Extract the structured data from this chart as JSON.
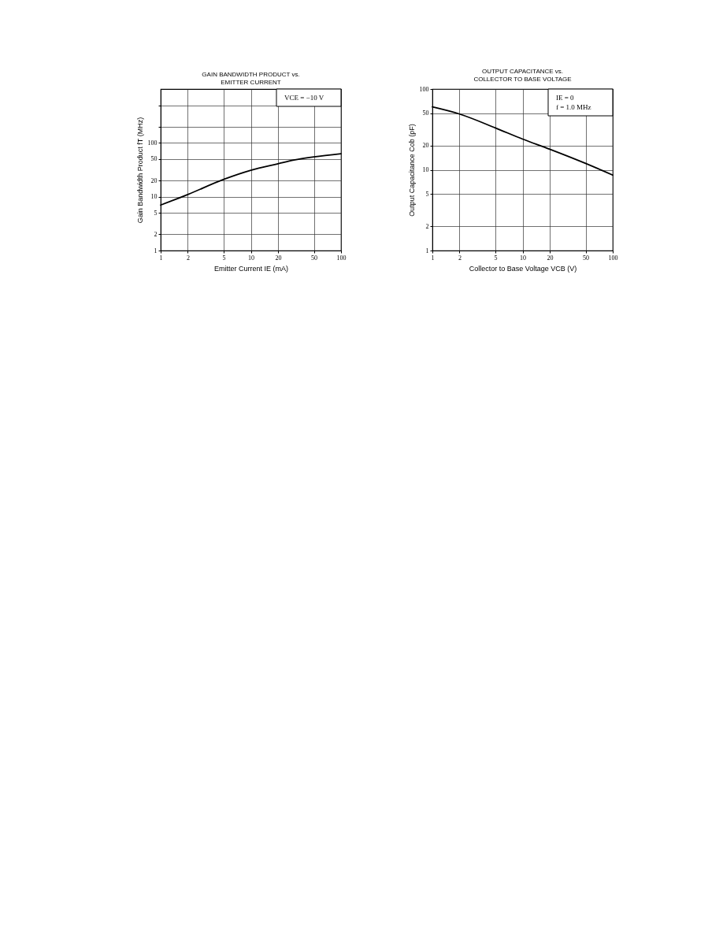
{
  "chart_data": [
    {
      "type": "line",
      "title": "GAIN BANDWIDTH PRODUCT vs.\nEMITTER CURRENT",
      "xlabel": "Emitter Current IE (mA)",
      "ylabel": "Gain Bandwidth Product fT (MHz)",
      "annotations": [
        "VCE = −10 V"
      ],
      "x": [
        1,
        2,
        5,
        10,
        20,
        30,
        50,
        100
      ],
      "series": [
        {
          "color": "#000000",
          "values": [
            7,
            11,
            21,
            31,
            41,
            48,
            55,
            63
          ]
        }
      ],
      "log": "xy",
      "xlim": [
        1,
        100
      ],
      "ylim": [
        1,
        1000
      ],
      "xticks": [
        1,
        2,
        5,
        10,
        20,
        50,
        100
      ],
      "yticks": [
        1,
        2,
        5,
        10,
        20,
        50,
        100,
        {
          "value": 200,
          "label": null
        },
        {
          "value": 500,
          "label": null
        }
      ],
      "grid": true,
      "line_style": "solid"
    },
    {
      "type": "line",
      "title": "OUTPUT CAPACITANCE vs.\nCOLLECTOR TO BASE VOLTAGE",
      "xlabel": "Collector to Base Voltage VCB (V)",
      "ylabel": "Output Capacitance Cob (pF)",
      "annotations": [
        "IE = 0",
        "f = 1.0 MHz"
      ],
      "x": [
        1,
        2,
        5,
        10,
        20,
        50,
        100
      ],
      "series": [
        {
          "color": "#000000",
          "values": [
            60,
            49,
            33,
            24,
            18,
            12,
            8.6
          ]
        }
      ],
      "log": "xy",
      "xlim": [
        1,
        100
      ],
      "ylim": [
        1,
        100
      ],
      "xticks": [
        1,
        2,
        5,
        10,
        20,
        50,
        100
      ],
      "yticks": [
        1,
        2,
        5,
        10,
        20,
        50,
        100
      ],
      "grid": true,
      "line_style": "solid"
    }
  ]
}
